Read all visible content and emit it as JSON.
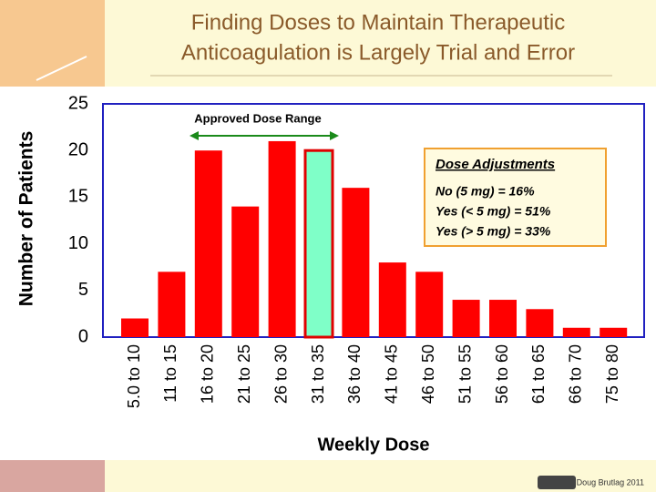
{
  "chart_data": {
    "type": "bar",
    "title": [
      "Finding Doses to Maintain Therapeutic",
      "Anticoagulation is Largely Trial and Error"
    ],
    "x_label": "Weekly Dose",
    "y_label": "Number of Patients",
    "categories": [
      "5.0 to 10",
      "11 to 15",
      "16 to 20",
      "21 to 25",
      "26 to 30",
      "31 to 35",
      "36 to 40",
      "41 to 45",
      "46 to 50",
      "51 to 55",
      "56 to 60",
      "61 to 65",
      "66 to 70",
      "75 to 80"
    ],
    "values": [
      2,
      7,
      20,
      14,
      21,
      20,
      16,
      8,
      7,
      4,
      4,
      3,
      1,
      1
    ],
    "colors": [
      "#ff0000",
      "#ff0000",
      "#ff0000",
      "#ff0000",
      "#ff0000",
      "#7fffc8",
      "#ff0000",
      "#ff0000",
      "#ff0000",
      "#ff0000",
      "#ff0000",
      "#ff0000",
      "#ff0000",
      "#ff0000"
    ],
    "ylim": [
      0,
      25
    ],
    "yticks": [
      0,
      5,
      10,
      15,
      20,
      25
    ],
    "grid": false,
    "range_label": "Approved Dose Range",
    "box_title": "Dose Adjustments",
    "box_lines": [
      "No (5 mg) = 16%",
      "Yes (< 5 mg) = 51%",
      "Yes (> 5 mg) = 33%"
    ],
    "credit": "Doug Brutlag 2011"
  }
}
